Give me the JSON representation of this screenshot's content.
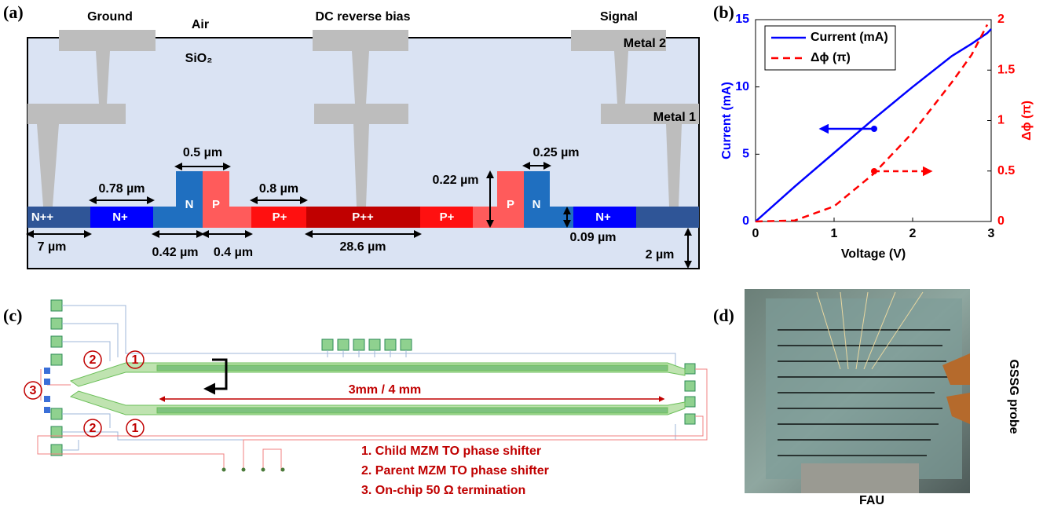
{
  "figure": {
    "panel_labels": [
      "(a)",
      "(b)",
      "(c)",
      "(d)"
    ],
    "cross_section": {
      "top_labels": [
        "Ground",
        "Air",
        "DC reverse bias",
        "Signal"
      ],
      "oxide": "SiO₂",
      "metal_labels": [
        "Metal 2",
        "Metal 1"
      ],
      "regions": [
        "N++",
        "N+",
        "N",
        "P",
        "P+",
        "P++",
        "P+",
        "P",
        "N",
        "N+"
      ],
      "dimensions": [
        "0.5 µm",
        "0.78 µm",
        "0.8 µm",
        "0.22 µm",
        "0.25 µm",
        "7 µm",
        "0.42 µm",
        "0.4 µm",
        "28.6 µm",
        "0.09 µm",
        "2 µm"
      ]
    },
    "layout": {
      "markers": [
        "2",
        "1",
        "3",
        "2",
        "1"
      ],
      "length": "3mm / 4 mm",
      "legend": [
        "1. Child MZM TO phase shifter",
        "2. Parent MZM TO phase shifter",
        "3. On-chip 50 Ω termination"
      ]
    },
    "photo": {
      "probe": "GSSG probe",
      "fau": "FAU"
    }
  },
  "chart_data": {
    "type": "line",
    "x_label": "Voltage (V)",
    "y_label": "Current (mA)",
    "y2_label": "Δϕ (π)",
    "x": [
      0,
      0.5,
      1,
      1.5,
      2,
      2.5,
      2.75,
      2.95,
      3
    ],
    "series": [
      {
        "name": "Current (mA)",
        "color": "#0000ff",
        "values": [
          0,
          2.6,
          5.1,
          7.6,
          10.0,
          12.3,
          13.2,
          14.0,
          14.3
        ]
      },
      {
        "name": "Δϕ (π)",
        "color": "#ff0000",
        "axis": "y2",
        "dashed": true,
        "values": [
          0,
          0.01,
          0.15,
          0.47,
          0.88,
          1.38,
          1.65,
          1.95,
          null
        ]
      }
    ],
    "xlim": [
      0,
      3
    ],
    "xticks": [
      0,
      1,
      2,
      3
    ],
    "ylim": [
      0,
      15
    ],
    "yticks": [
      0,
      5,
      10,
      15
    ],
    "y2lim": [
      0,
      2
    ],
    "y2ticks": [
      0,
      0.5,
      1,
      1.5,
      2
    ],
    "legend": "upper left"
  }
}
